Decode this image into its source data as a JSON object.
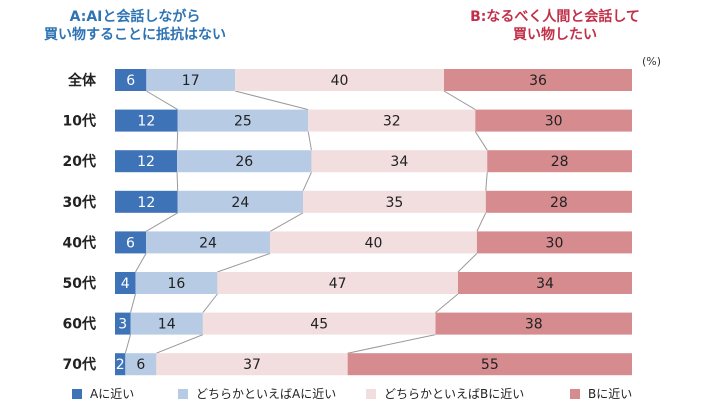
{
  "headline_a": [
    "A:AIと会話しながら",
    "買い物することに抵抗はない"
  ],
  "headline_b": [
    "B:なるべく人間と会話して",
    "買い物したい"
  ],
  "unit": "(%)",
  "colors": {
    "a_close": "#3f73b7",
    "lean_a": "#b7cbe4",
    "lean_b": "#f2dede",
    "b_close": "#d68b8f",
    "headline_a": "#2e74b5",
    "headline_b": "#c0314a"
  },
  "chart_data": {
    "type": "bar",
    "orientation": "horizontal-stacked-100",
    "categories": [
      "全体",
      "10代",
      "20代",
      "30代",
      "40代",
      "50代",
      "60代",
      "70代"
    ],
    "series": [
      {
        "name": "Aに近い",
        "values": [
          6,
          12,
          12,
          12,
          6,
          4,
          3,
          2
        ]
      },
      {
        "name": "どちらかといえばAに近い",
        "values": [
          17,
          25,
          26,
          24,
          24,
          16,
          14,
          6
        ]
      },
      {
        "name": "どちらかといえばBに近い",
        "values": [
          40,
          32,
          34,
          35,
          40,
          47,
          45,
          37
        ]
      },
      {
        "name": "Bに近い",
        "values": [
          36,
          30,
          28,
          28,
          30,
          34,
          38,
          55
        ]
      }
    ],
    "connector_lines": true,
    "legend_position": "bottom"
  },
  "legend": [
    "Aに近い",
    "どちらかといえばAに近い",
    "どちらかといえばBに近い",
    "Bに近い"
  ]
}
